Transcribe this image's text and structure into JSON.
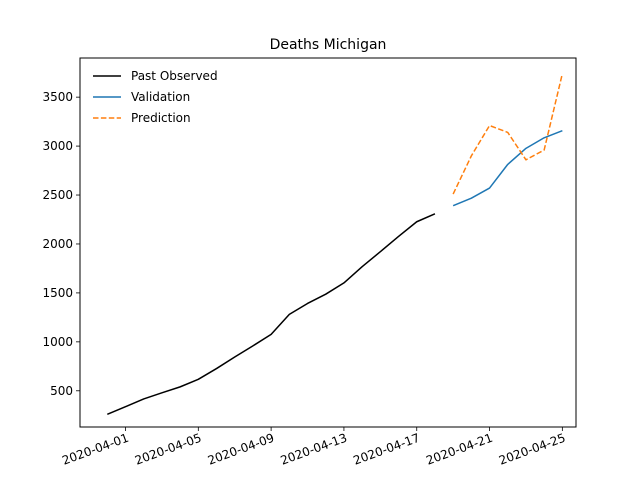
{
  "chart_data": {
    "type": "line",
    "title": "Deaths Michigan",
    "xlabel": "",
    "ylabel": "",
    "x_ticks": [
      "2020-04-01",
      "2020-04-05",
      "2020-04-09",
      "2020-04-13",
      "2020-04-17",
      "2020-04-21",
      "2020-04-25"
    ],
    "y_ticks": [
      500,
      1000,
      1500,
      2000,
      2500,
      3000,
      3500
    ],
    "xlim": [
      "2020-03-29",
      "2020-04-26"
    ],
    "ylim": [
      130,
      3900
    ],
    "grid": false,
    "legend_position": "upper-left",
    "series": [
      {
        "name": "Past Observed",
        "color": "#000000",
        "dash": "solid",
        "points": [
          [
            "2020-03-31",
            259
          ],
          [
            "2020-04-01",
            337
          ],
          [
            "2020-04-02",
            417
          ],
          [
            "2020-04-03",
            479
          ],
          [
            "2020-04-04",
            540
          ],
          [
            "2020-04-05",
            617
          ],
          [
            "2020-04-06",
            727
          ],
          [
            "2020-04-07",
            845
          ],
          [
            "2020-04-08",
            959
          ],
          [
            "2020-04-09",
            1076
          ],
          [
            "2020-04-10",
            1281
          ],
          [
            "2020-04-11",
            1392
          ],
          [
            "2020-04-12",
            1487
          ],
          [
            "2020-04-13",
            1602
          ],
          [
            "2020-04-14",
            1768
          ],
          [
            "2020-04-15",
            1921
          ],
          [
            "2020-04-16",
            2077
          ],
          [
            "2020-04-17",
            2227
          ],
          [
            "2020-04-18",
            2308
          ]
        ]
      },
      {
        "name": "Validation",
        "color": "#1f77b4",
        "dash": "solid",
        "points": [
          [
            "2020-04-19",
            2391
          ],
          [
            "2020-04-20",
            2468
          ],
          [
            "2020-04-21",
            2571
          ],
          [
            "2020-04-22",
            2813
          ],
          [
            "2020-04-23",
            2977
          ],
          [
            "2020-04-24",
            3085
          ],
          [
            "2020-04-25",
            3157
          ]
        ]
      },
      {
        "name": "Prediction",
        "color": "#ff7f0e",
        "dash": "dashed",
        "points": [
          [
            "2020-04-19",
            2510
          ],
          [
            "2020-04-20",
            2900
          ],
          [
            "2020-04-21",
            3210
          ],
          [
            "2020-04-22",
            3140
          ],
          [
            "2020-04-23",
            2860
          ],
          [
            "2020-04-24",
            2960
          ],
          [
            "2020-04-25",
            3740
          ]
        ]
      }
    ]
  }
}
